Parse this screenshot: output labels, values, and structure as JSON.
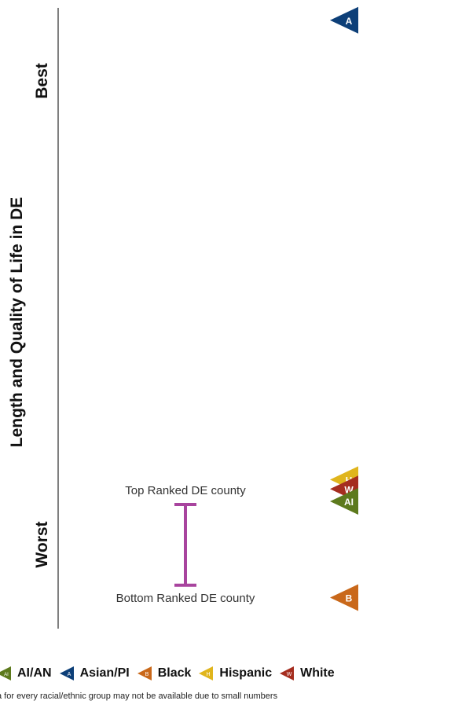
{
  "chart_data": {
    "type": "scatter",
    "ylabel": "Length and Quality of Life in DE",
    "y_top_label": "Best",
    "y_bottom_label": "Worst",
    "range": {
      "top_label": "Top Ranked DE county",
      "bottom_label": "Bottom Ranked DE county",
      "top_value": 0.2,
      "bottom_value": 0.07,
      "color": "#a8449e"
    },
    "markers": [
      {
        "group": "Asian/PI",
        "letter": "A",
        "value": 0.98,
        "color": "#0d3f78"
      },
      {
        "group": "Hispanic",
        "letter": "H",
        "value": 0.24,
        "color": "#e0b51d"
      },
      {
        "group": "White",
        "letter": "W",
        "value": 0.225,
        "color": "#a52d1f"
      },
      {
        "group": "AI/AN",
        "letter": "AI",
        "value": 0.205,
        "color": "#5d7a1d"
      },
      {
        "group": "Black",
        "letter": "B",
        "value": 0.05,
        "color": "#c9681a"
      }
    ],
    "legend": [
      {
        "label": "AI/AN",
        "color": "#5d7a1d",
        "letter": "AI"
      },
      {
        "label": "Asian/PI",
        "color": "#0d3f78",
        "letter": "A"
      },
      {
        "label": "Black",
        "color": "#c9681a",
        "letter": "B"
      },
      {
        "label": "Hispanic",
        "color": "#e0b51d",
        "letter": "H"
      },
      {
        "label": "White",
        "color": "#a52d1f",
        "letter": "W"
      }
    ],
    "footnote": "a for every racial/ethnic group may not be available due to small numbers"
  }
}
